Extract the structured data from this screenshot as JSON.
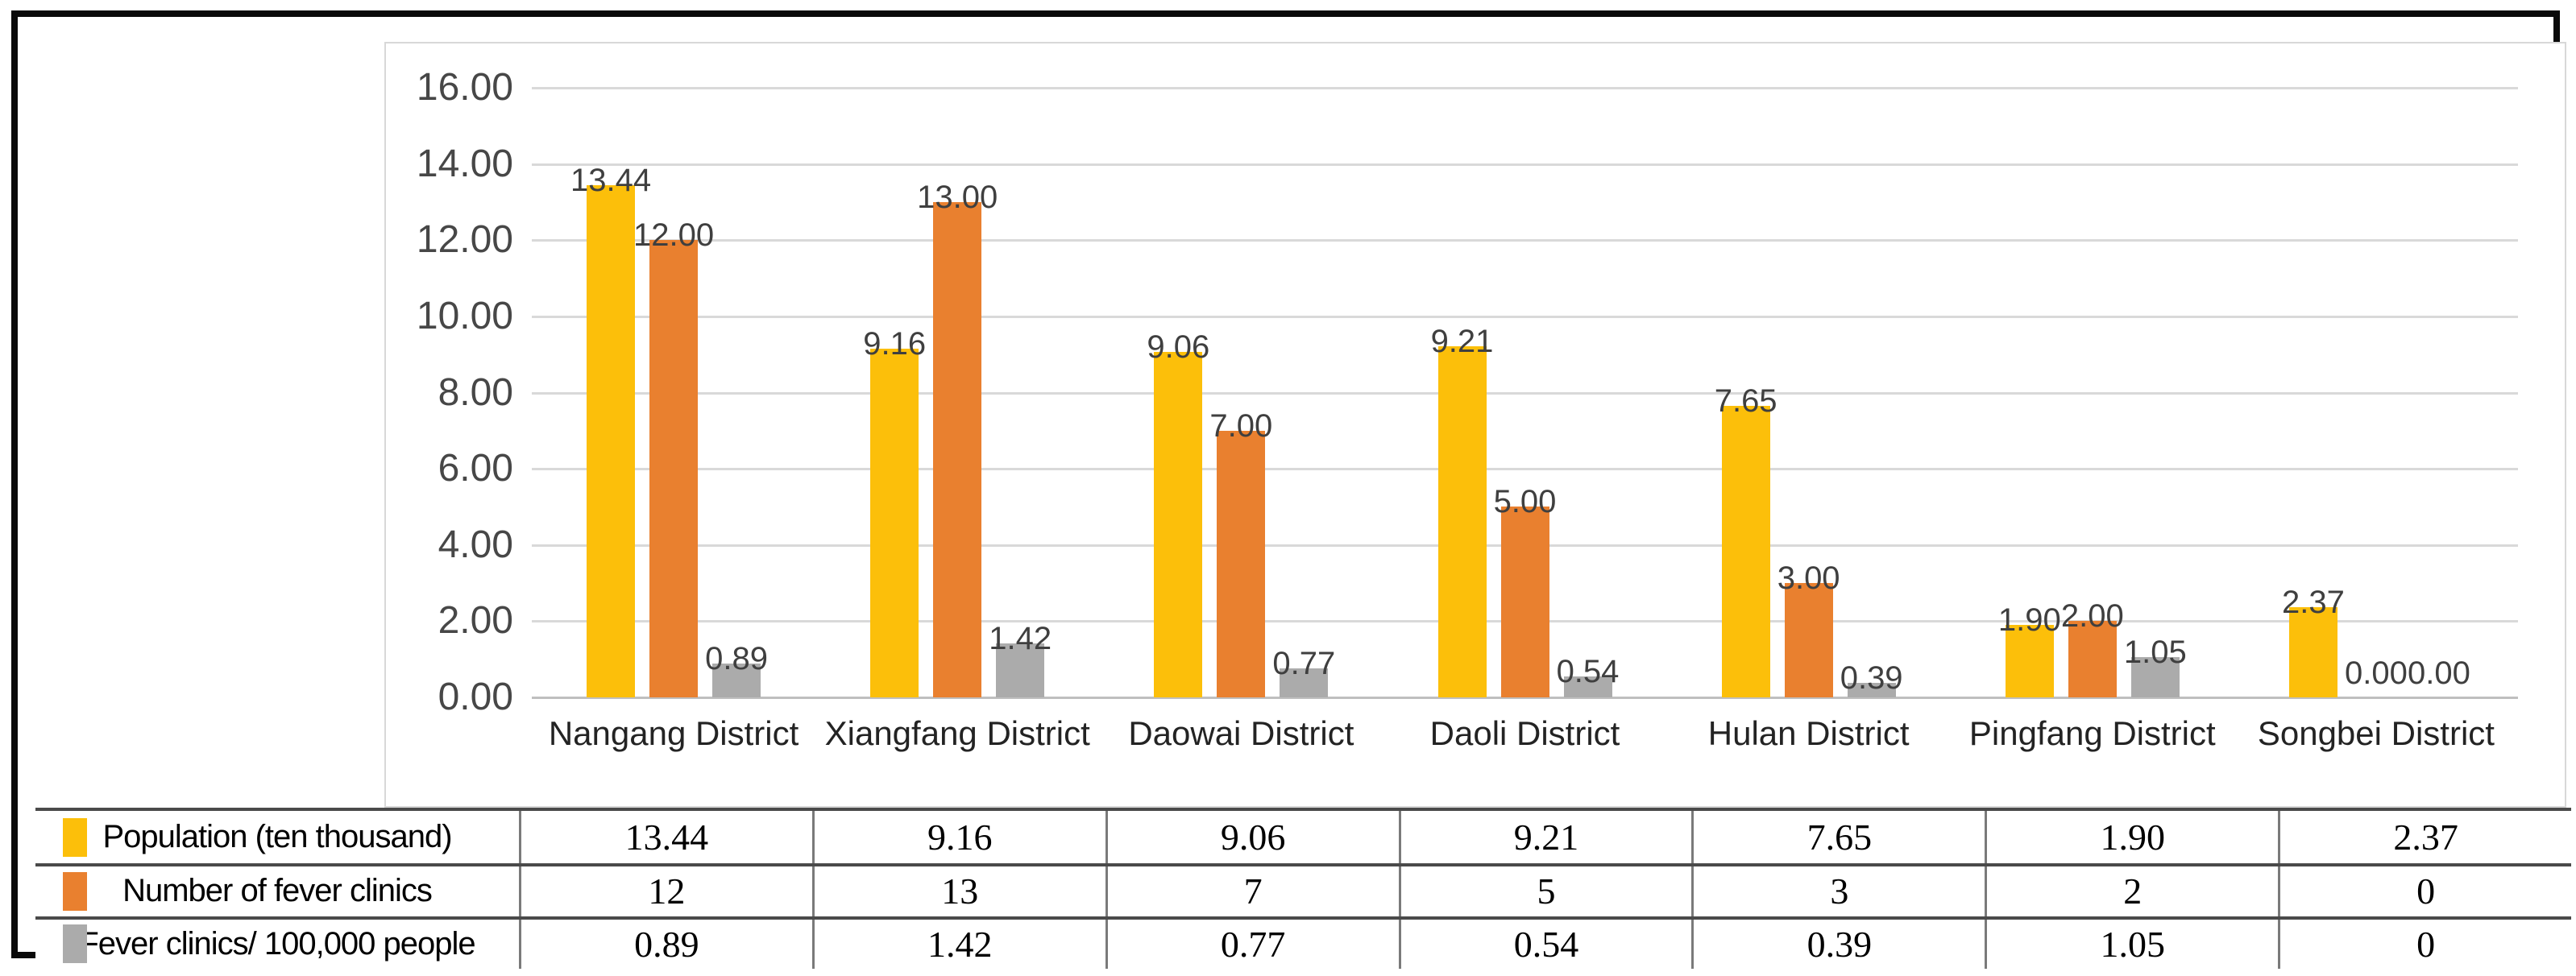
{
  "figure": {
    "background": "#ffffff",
    "frame_color": "#0a0a0a"
  },
  "chart_data": {
    "type": "bar",
    "categories": [
      "Nangang District",
      "Xiangfang District",
      "Daowai District",
      "Daoli District",
      "Hulan District",
      "Pingfang District",
      "Songbei District"
    ],
    "series": [
      {
        "name": "Population (ten thousand)",
        "color": "#fcbf0a",
        "values": [
          13.44,
          9.16,
          9.06,
          9.21,
          7.65,
          1.9,
          2.37
        ],
        "data_labels": [
          "13.44",
          "9.16",
          "9.06",
          "9.21",
          "7.65",
          "1.90",
          "2.37"
        ]
      },
      {
        "name": "Number of fever clinics",
        "color": "#e9802f",
        "values": [
          12,
          13,
          7,
          5,
          3,
          2,
          0
        ],
        "data_labels": [
          "12.00",
          "13.00",
          "7.00",
          "5.00",
          "3.00",
          "2.00",
          "0.00"
        ]
      },
      {
        "name": "Fever clinics/ 100,000 people",
        "color": "#ababab",
        "values": [
          0.89,
          1.42,
          0.77,
          0.54,
          0.39,
          1.05,
          0
        ],
        "data_labels": [
          "0.89",
          "1.42",
          "0.77",
          "0.54",
          "0.39",
          "1.05",
          "0.00"
        ]
      }
    ],
    "ylim": [
      0,
      16
    ],
    "ytick_step": 2,
    "ytick_labels": [
      "0.00",
      "2.00",
      "4.00",
      "6.00",
      "8.00",
      "10.00",
      "12.00",
      "14.00",
      "16.00"
    ],
    "grid": true,
    "legend_position": "table-below-chart",
    "gridline_color": "#d9d9d9",
    "axis_line_color": "#bfbfbf",
    "tick_label_color": "#474747",
    "data_label_color": "#3f3f3f",
    "category_label_color": "#232323"
  },
  "table": {
    "rows": [
      {
        "label": "Population (ten thousand)",
        "swatch_color": "#fcbf0a",
        "values": [
          "13.44",
          "9.16",
          "9.06",
          "9.21",
          "7.65",
          "1.90",
          "2.37"
        ]
      },
      {
        "label": "Number of fever clinics",
        "swatch_color": "#e9802f",
        "values": [
          "12",
          "13",
          "7",
          "5",
          "3",
          "2",
          "0"
        ]
      },
      {
        "label": "Fever clinics/ 100,000 people",
        "swatch_color": "#ababab",
        "values": [
          "0.89",
          "1.42",
          "0.77",
          "0.54",
          "0.39",
          "1.05",
          "0"
        ]
      }
    ]
  }
}
